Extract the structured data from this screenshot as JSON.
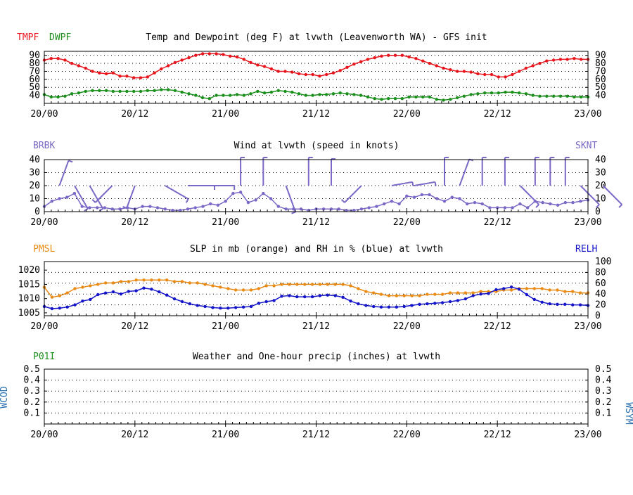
{
  "colors": {
    "red": "#e8141c",
    "green": "#1b8f1b",
    "purple": "#7b68c6",
    "orange": "#e88a14",
    "blue": "#1414c8",
    "steel": "#2a6fb0",
    "axis": "#000000"
  },
  "x_tick_labels": [
    "20/00",
    "20/12",
    "21/00",
    "21/12",
    "22/00",
    "22/12",
    "23/00"
  ],
  "chart_data": [
    {
      "type": "line",
      "title": "Temp and Dewpoint (deg F) at lvwth (Leavenworth WA) - GFS init",
      "left_label_1": "TMPF",
      "left_label_2": "DWPF",
      "ylim": [
        30,
        95
      ],
      "yticks": [
        40,
        50,
        60,
        70,
        80,
        90
      ],
      "grid": "dotted horizontal",
      "series": [
        {
          "name": "TMPF",
          "color_key": "red",
          "values": [
            84,
            86,
            86,
            84,
            80,
            77,
            74,
            70,
            68,
            67,
            68,
            64,
            64,
            62,
            62,
            63,
            68,
            73,
            77,
            81,
            84,
            87,
            90,
            92,
            92,
            92,
            91,
            89,
            88,
            85,
            81,
            78,
            76,
            73,
            70,
            70,
            69,
            67,
            66,
            66,
            64,
            66,
            68,
            71,
            75,
            79,
            82,
            85,
            87,
            89,
            90,
            90,
            90,
            88,
            86,
            83,
            80,
            77,
            74,
            72,
            70,
            70,
            69,
            67,
            66,
            66,
            63,
            63,
            66,
            70,
            74,
            77,
            80,
            83,
            84,
            85,
            85,
            86,
            85,
            85
          ]
        },
        {
          "name": "DWPF",
          "color_key": "green",
          "values": [
            41,
            38,
            38,
            39,
            42,
            43,
            45,
            46,
            46,
            46,
            45,
            45,
            45,
            45,
            45,
            46,
            46,
            47,
            47,
            46,
            44,
            42,
            40,
            37,
            36,
            40,
            40,
            40,
            41,
            40,
            42,
            45,
            43,
            44,
            46,
            45,
            44,
            42,
            40,
            40,
            41,
            41,
            42,
            43,
            42,
            41,
            40,
            38,
            36,
            35,
            36,
            36,
            36,
            38,
            38,
            38,
            38,
            35,
            34,
            35,
            37,
            39,
            41,
            42,
            43,
            43,
            43,
            44,
            44,
            43,
            42,
            40,
            39,
            39,
            39,
            39,
            39,
            38,
            38,
            38
          ]
        }
      ]
    },
    {
      "type": "line",
      "title": "Wind at  lvwth (speed in knots)",
      "left_label": "BRBK",
      "right_label": "SKNT",
      "ylim": [
        0,
        40
      ],
      "yticks": [
        0,
        10,
        20,
        30,
        40
      ],
      "grid": "dotted horizontal",
      "series": [
        {
          "name": "SKNT",
          "color_key": "purple",
          "values": [
            4,
            8,
            10,
            11,
            14,
            4,
            3,
            3,
            3,
            2,
            2,
            3,
            2,
            4,
            4,
            3,
            2,
            1,
            1,
            2,
            3,
            4,
            6,
            5,
            8,
            14,
            15,
            7,
            9,
            14,
            10,
            4,
            2,
            2,
            2,
            1,
            2,
            2,
            2,
            2,
            1,
            1,
            2,
            3,
            4,
            6,
            8,
            6,
            12,
            11,
            13,
            13,
            10,
            8,
            11,
            10,
            6,
            7,
            6,
            3,
            3,
            3,
            3,
            6,
            3,
            8,
            7,
            6,
            5,
            7,
            7,
            8,
            9
          ]
        }
      ],
      "barbs": [
        {
          "i": 2,
          "dir": 20,
          "len": 38
        },
        {
          "i": 4,
          "dir": 150,
          "len": 38
        },
        {
          "i": 6,
          "dir": 150,
          "len": 38
        },
        {
          "i": 9,
          "dir": 225,
          "len": 34
        },
        {
          "i": 12,
          "dir": 200,
          "len": 34
        },
        {
          "i": 16,
          "dir": 120,
          "len": 38
        },
        {
          "i": 19,
          "dir": 90,
          "len": 38
        },
        {
          "i": 22,
          "dir": 90,
          "len": 34
        },
        {
          "i": 26,
          "dir": 0,
          "len": 40
        },
        {
          "i": 29,
          "dir": 0,
          "len": 40
        },
        {
          "i": 32,
          "dir": 160,
          "len": 40
        },
        {
          "i": 35,
          "dir": 0,
          "len": 40
        },
        {
          "i": 38,
          "dir": 0,
          "len": 38
        },
        {
          "i": 42,
          "dir": 225,
          "len": 34
        },
        {
          "i": 46,
          "dir": 80,
          "len": 30
        },
        {
          "i": 49,
          "dir": 80,
          "len": 30
        },
        {
          "i": 53,
          "dir": 0,
          "len": 40
        },
        {
          "i": 55,
          "dir": 20,
          "len": 40
        },
        {
          "i": 58,
          "dir": 0,
          "len": 40
        },
        {
          "i": 61,
          "dir": 0,
          "len": 40
        },
        {
          "i": 63,
          "dir": 135,
          "len": 38
        },
        {
          "i": 65,
          "dir": 0,
          "len": 40
        },
        {
          "i": 67,
          "dir": 0,
          "len": 40
        },
        {
          "i": 69,
          "dir": 0,
          "len": 40
        },
        {
          "i": 71,
          "dir": 135,
          "len": 38
        },
        {
          "i": 74,
          "dir": 135,
          "len": 38
        }
      ]
    },
    {
      "type": "line",
      "title": "SLP in mb (orange) and RH in % (blue) at  lvwth",
      "left_label": "PMSL",
      "right_label": "RELH",
      "ylim_left": [
        1004,
        1023
      ],
      "yticks_left": [
        1005,
        1010,
        1015,
        1020
      ],
      "ylim_right": [
        0,
        100
      ],
      "yticks_right": [
        0,
        20,
        40,
        60,
        80,
        100
      ],
      "grid": "dotted horizontal",
      "series": [
        {
          "name": "PMSL",
          "axis": "left",
          "color_key": "orange",
          "values": [
            1014,
            1010.5,
            1011,
            1012,
            1013.5,
            1014,
            1014.5,
            1015,
            1015.5,
            1015.5,
            1016,
            1016,
            1016.5,
            1016.5,
            1016.5,
            1016.5,
            1016.5,
            1016,
            1016,
            1015.5,
            1015.5,
            1015,
            1014.5,
            1014,
            1013.5,
            1013,
            1013,
            1013,
            1013.5,
            1014.5,
            1014.5,
            1015,
            1015,
            1015,
            1015,
            1015,
            1015,
            1015,
            1015,
            1015,
            1014.5,
            1013.5,
            1012.5,
            1012,
            1011.5,
            1011,
            1011,
            1011,
            1011,
            1011,
            1011.5,
            1011.5,
            1011.5,
            1012,
            1012,
            1012,
            1012,
            1012.5,
            1012.5,
            1012.5,
            1013,
            1013,
            1013.5,
            1013.5,
            1013.5,
            1013.5,
            1013,
            1013,
            1012.5,
            1012.5,
            1012,
            1012
          ]
        },
        {
          "name": "RELH",
          "axis": "right",
          "color_key": "blue",
          "values": [
            17,
            13,
            14,
            16,
            20,
            27,
            30,
            39,
            42,
            44,
            40,
            45,
            46,
            51,
            49,
            44,
            38,
            31,
            26,
            22,
            19,
            17,
            15,
            14,
            14,
            15,
            16,
            17,
            23,
            26,
            28,
            36,
            37,
            35,
            35,
            35,
            37,
            38,
            37,
            34,
            27,
            22,
            19,
            17,
            16,
            16,
            16,
            17,
            19,
            21,
            22,
            23,
            24,
            26,
            28,
            31,
            37,
            40,
            41,
            48,
            50,
            53,
            49,
            39,
            30,
            25,
            22,
            21,
            21,
            20,
            20,
            19
          ]
        }
      ]
    },
    {
      "type": "line",
      "title": "Weather and One-hour precip (inches) at  lvwth",
      "left_label": "P01I",
      "left_vertical_label": "WCOD",
      "right_vertical_label": "WSYM",
      "ylim": [
        0,
        0.5
      ],
      "yticks": [
        "0.1",
        "0.2",
        "0.3",
        "0.4",
        "0.5"
      ],
      "grid": "dotted horizontal",
      "series": []
    }
  ]
}
